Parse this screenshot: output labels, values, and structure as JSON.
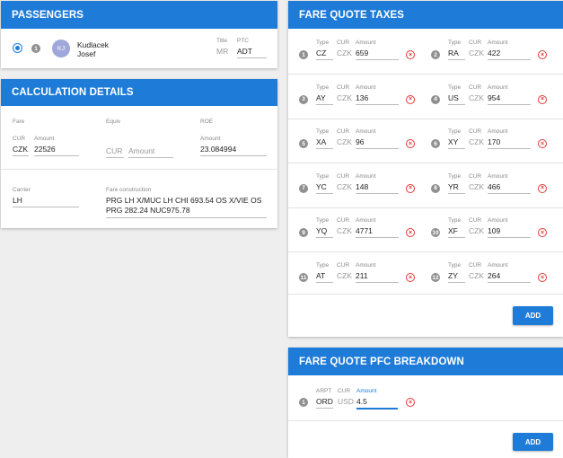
{
  "passengers": {
    "title": "PASSENGERS",
    "items": [
      {
        "index": "1",
        "initials": "KJ",
        "last_name": "Kudlacek",
        "first_name": "Josef",
        "title_label": "Title",
        "title_value": "MR",
        "ptc_label": "PTC",
        "ptc_value": "ADT"
      }
    ]
  },
  "calculation": {
    "title": "CALCULATION DETAILS",
    "fare_label": "Fare",
    "equiv_label": "Equiv",
    "roe_label": "ROE",
    "cur_label": "CUR",
    "amount_label": "Amount",
    "fare_cur": "CZK",
    "fare_amount": "22526",
    "equiv_cur_placeholder": "CUR",
    "equiv_amount_placeholder": "Amount",
    "roe_amount_label": "Amount",
    "roe_amount": "23.084994",
    "carrier_label": "Carrier",
    "carrier": "LH",
    "fare_construction_label": "Fare construction",
    "fare_construction": "PRG LH X/MUC LH CHI 693.54 OS X/VIE OS PRG 282.24 NUC975.78"
  },
  "taxes": {
    "title": "FARE QUOTE TAXES",
    "type_label": "Type",
    "cur_label": "CUR",
    "amount_label": "Amount",
    "add_label": "ADD",
    "items": [
      {
        "index": "1",
        "type": "CZ",
        "cur": "CZK",
        "amount": "659"
      },
      {
        "index": "2",
        "type": "RA",
        "cur": "CZK",
        "amount": "422"
      },
      {
        "index": "3",
        "type": "AY",
        "cur": "CZK",
        "amount": "136"
      },
      {
        "index": "4",
        "type": "US",
        "cur": "CZK",
        "amount": "954"
      },
      {
        "index": "5",
        "type": "XA",
        "cur": "CZK",
        "amount": "96"
      },
      {
        "index": "6",
        "type": "XY",
        "cur": "CZK",
        "amount": "170"
      },
      {
        "index": "7",
        "type": "YC",
        "cur": "CZK",
        "amount": "148"
      },
      {
        "index": "8",
        "type": "YR",
        "cur": "CZK",
        "amount": "466"
      },
      {
        "index": "9",
        "type": "YQ",
        "cur": "CZK",
        "amount": "4771"
      },
      {
        "index": "10",
        "type": "XF",
        "cur": "CZK",
        "amount": "109"
      },
      {
        "index": "11",
        "type": "AT",
        "cur": "CZK",
        "amount": "211"
      },
      {
        "index": "12",
        "type": "ZY",
        "cur": "CZK",
        "amount": "264"
      }
    ]
  },
  "pfc": {
    "title": "FARE QUOTE PFC BREAKDOWN",
    "arpt_label": "ARPT",
    "cur_label": "CUR",
    "amount_label": "Amount",
    "add_label": "ADD",
    "items": [
      {
        "index": "1",
        "arpt": "ORD",
        "cur": "USD",
        "amount": "4.5"
      }
    ]
  },
  "colors": {
    "accent": "#1e7bd8",
    "delete": "#e53935"
  }
}
